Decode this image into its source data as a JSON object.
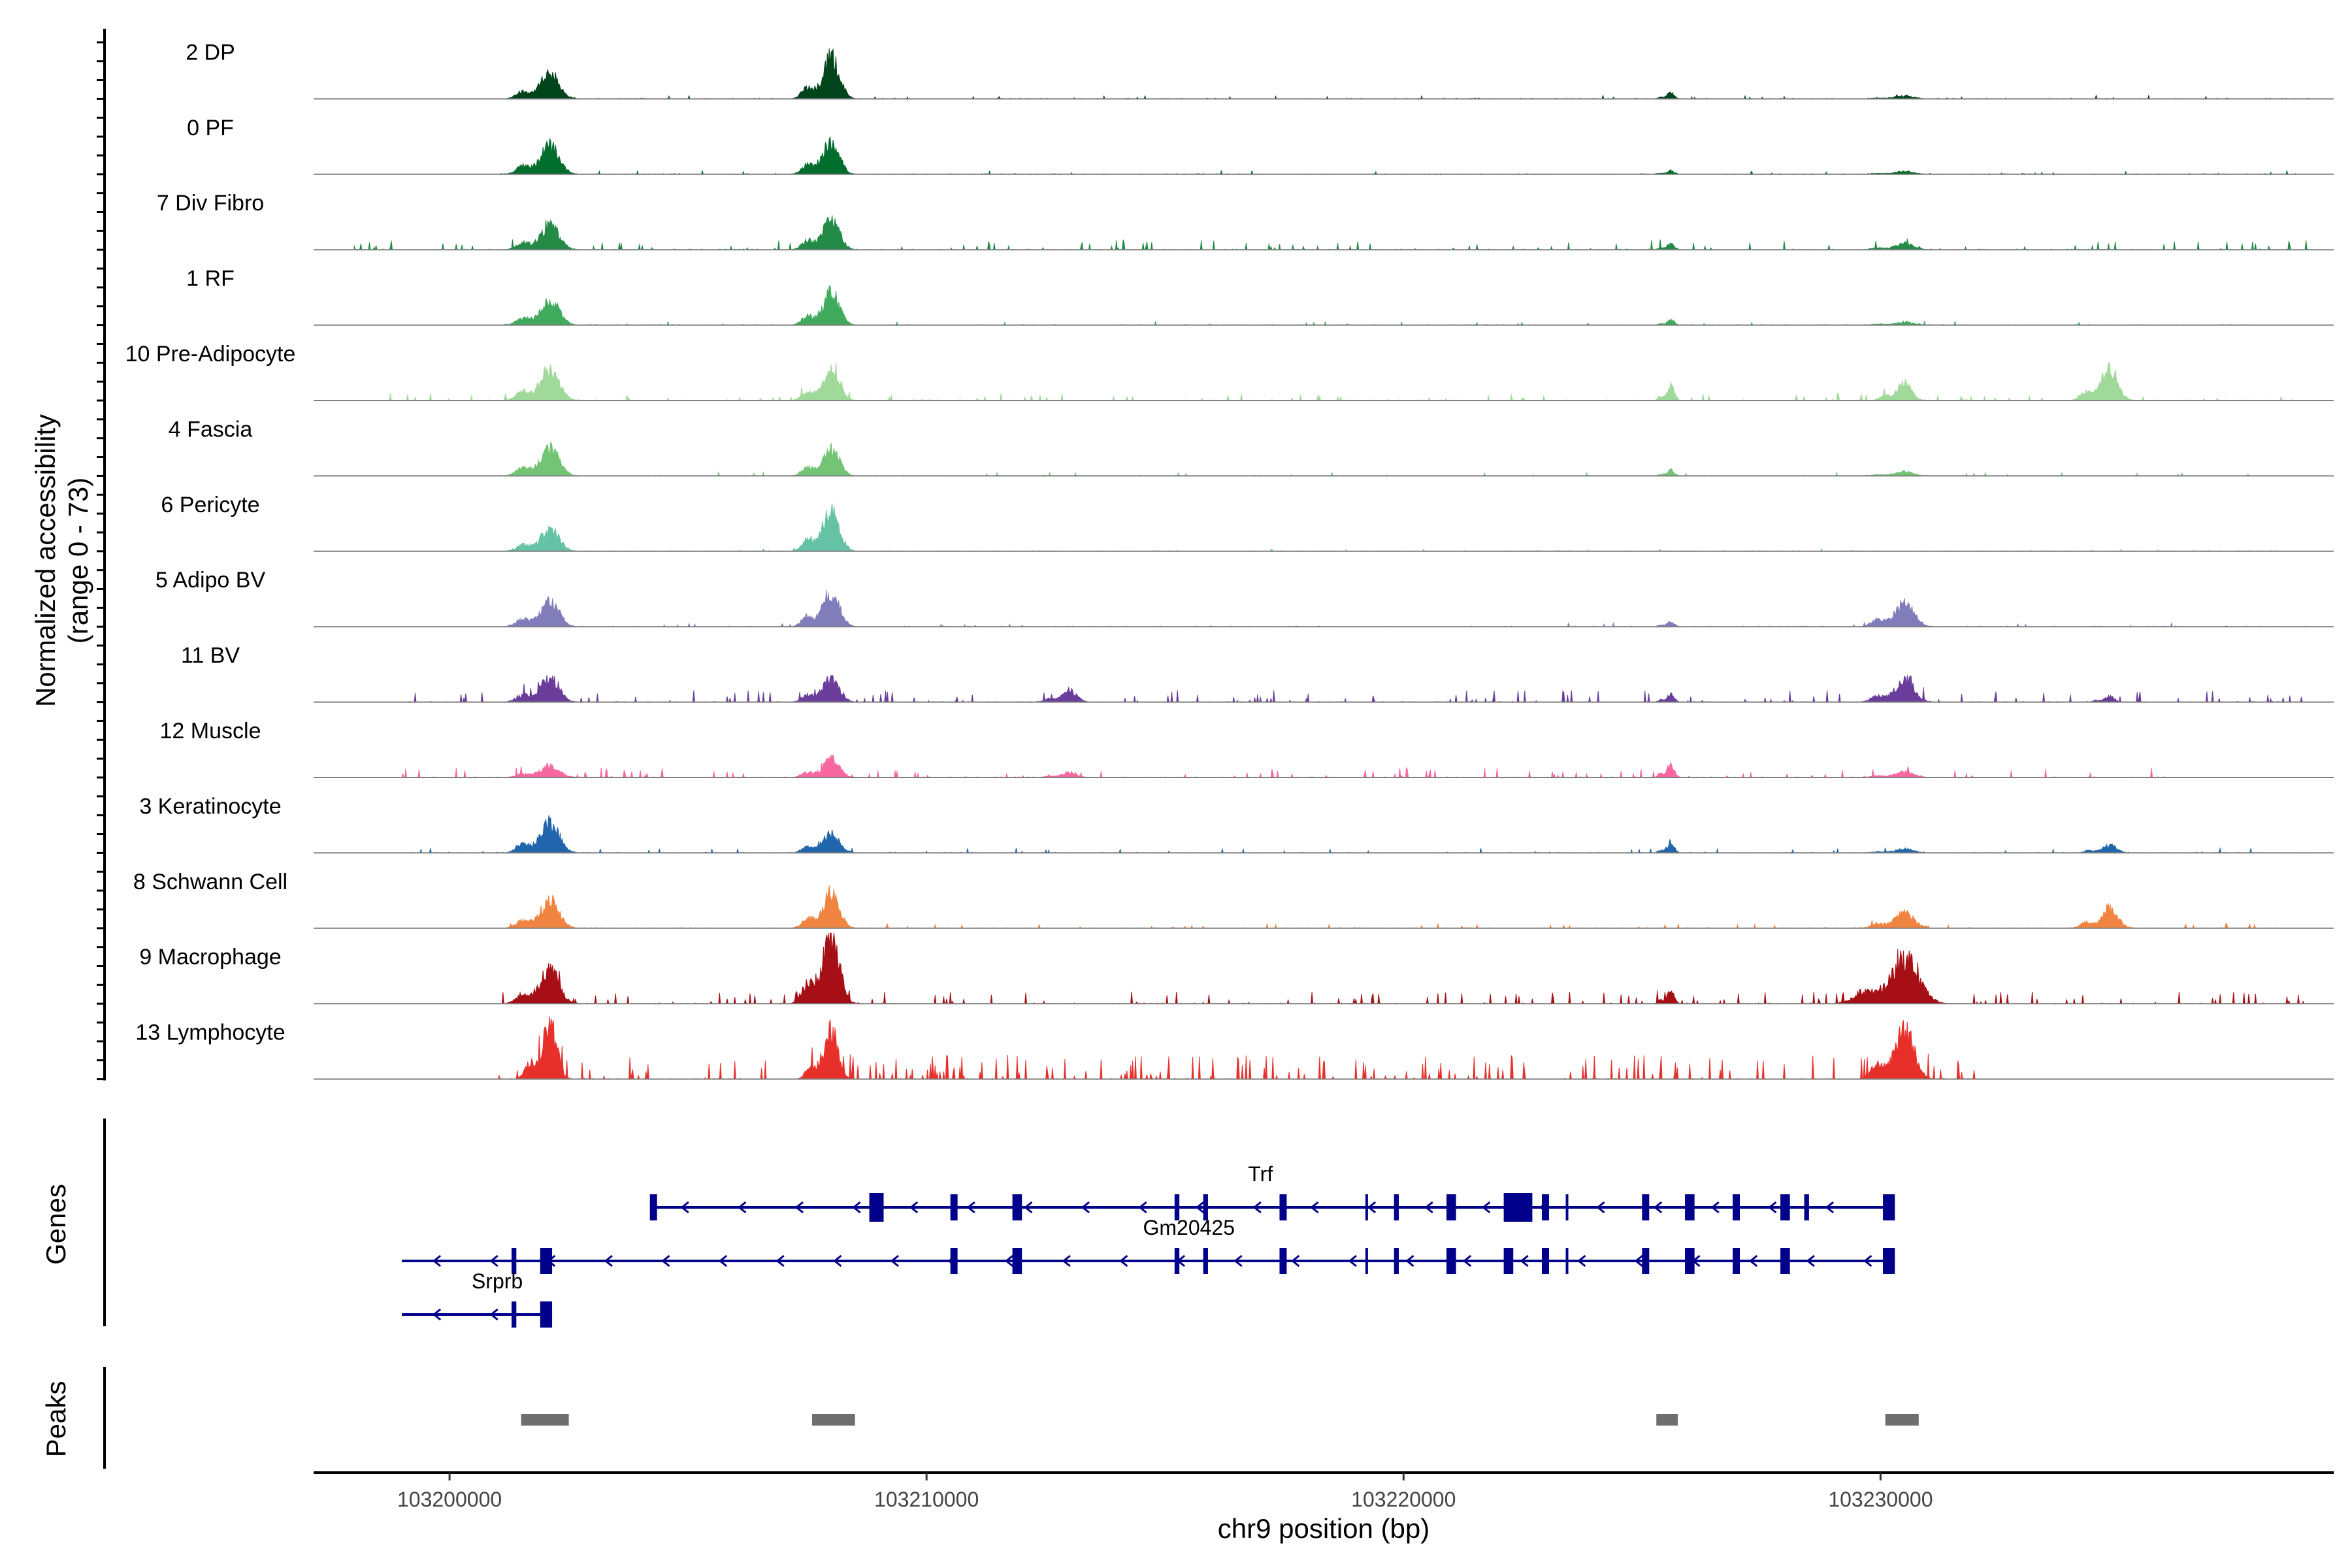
{
  "chart_data": {
    "type": "area",
    "title": "",
    "chromosome": "chr9",
    "xlabel": "chr9 position (bp)",
    "ylabel": "Normalized accessibility",
    "ylabel_range": "(range 0 - 73)",
    "xlim": [
      103197150,
      103239500
    ],
    "ylim": [
      0,
      73
    ],
    "x_ticks": [
      {
        "value": 103200000,
        "label": "103200000"
      },
      {
        "value": 103210000,
        "label": "103210000"
      },
      {
        "value": 103220000,
        "label": "103220000"
      },
      {
        "value": 103230000,
        "label": "103230000"
      }
    ],
    "peak_centers": [
      103202100,
      103208000,
      103213000,
      103225600,
      103230500,
      103234800
    ],
    "tracks": [
      {
        "name": "2 DP",
        "color": "#00441b",
        "peaks": [
          [
            103202100,
            26,
            400
          ],
          [
            103208000,
            42,
            350
          ],
          [
            103225600,
            6,
            150
          ],
          [
            103230500,
            3,
            400
          ]
        ],
        "noise": 1.5,
        "spread": [
          103201000,
          103239000
        ]
      },
      {
        "name": "0 PF",
        "color": "#006d2c",
        "peaks": [
          [
            103202100,
            30,
            400
          ],
          [
            103208000,
            33,
            350
          ],
          [
            103225600,
            4,
            150
          ],
          [
            103230500,
            3,
            400
          ]
        ],
        "noise": 1.5,
        "spread": [
          103201000,
          103239000
        ]
      },
      {
        "name": "7 Div Fibro",
        "color": "#238b45",
        "peaks": [
          [
            103202100,
            24,
            400
          ],
          [
            103208000,
            32,
            350
          ],
          [
            103225600,
            6,
            150
          ],
          [
            103230500,
            6,
            400
          ]
        ],
        "noise": 4,
        "spread": [
          103198000,
          103239000
        ]
      },
      {
        "name": "1 RF",
        "color": "#41ab5d",
        "peaks": [
          [
            103202100,
            25,
            400
          ],
          [
            103208000,
            32,
            350
          ],
          [
            103225600,
            5,
            150
          ],
          [
            103230500,
            3,
            400
          ]
        ],
        "noise": 1.5,
        "spread": [
          103201000,
          103239000
        ]
      },
      {
        "name": "10 Pre-Adipocyte",
        "color": "#a1d99b",
        "peaks": [
          [
            103202100,
            32,
            400
          ],
          [
            103208000,
            30,
            350
          ],
          [
            103225600,
            15,
            150
          ],
          [
            103230500,
            18,
            300
          ],
          [
            103234800,
            32,
            350
          ]
        ],
        "noise": 3,
        "spread": [
          103198000,
          103239000
        ]
      },
      {
        "name": "4 Fascia",
        "color": "#74c476",
        "peaks": [
          [
            103202100,
            28,
            400
          ],
          [
            103208000,
            28,
            350
          ],
          [
            103225600,
            6,
            150
          ],
          [
            103230500,
            4,
            400
          ]
        ],
        "noise": 1.5,
        "spread": [
          103201000,
          103239000
        ]
      },
      {
        "name": "6 Pericyte",
        "color": "#66c2a4",
        "peaks": [
          [
            103202100,
            22,
            400
          ],
          [
            103208000,
            42,
            350
          ]
        ],
        "noise": 1,
        "spread": [
          103201000,
          103239000
        ]
      },
      {
        "name": "5 Adipo BV",
        "color": "#807dba",
        "peaks": [
          [
            103202100,
            26,
            400
          ],
          [
            103208000,
            36,
            350
          ],
          [
            103225600,
            5,
            150
          ],
          [
            103230500,
            24,
            400
          ]
        ],
        "noise": 1.5,
        "spread": [
          103201000,
          103239000
        ]
      },
      {
        "name": "11 BV",
        "color": "#6a3d9a",
        "peaks": [
          [
            103202100,
            24,
            400
          ],
          [
            103208000,
            24,
            350
          ],
          [
            103213000,
            12,
            300
          ],
          [
            103225600,
            8,
            150
          ],
          [
            103230500,
            22,
            400
          ],
          [
            103234800,
            6,
            200
          ]
        ],
        "noise": 5,
        "spread": [
          103199000,
          103239000
        ]
      },
      {
        "name": "12 Muscle",
        "color": "#f768a1",
        "peaks": [
          [
            103202100,
            12,
            400
          ],
          [
            103208000,
            18,
            350
          ],
          [
            103213000,
            5,
            300
          ],
          [
            103225600,
            14,
            150
          ],
          [
            103230500,
            6,
            400
          ]
        ],
        "noise": 4,
        "spread": [
          103199000,
          103236000
        ]
      },
      {
        "name": "3 Keratinocyte",
        "color": "#2166ac",
        "peaks": [
          [
            103202100,
            30,
            400
          ],
          [
            103208000,
            20,
            350
          ],
          [
            103225600,
            10,
            150
          ],
          [
            103230500,
            4,
            400
          ],
          [
            103234800,
            8,
            300
          ]
        ],
        "noise": 2,
        "spread": [
          103199000,
          103239000
        ]
      },
      {
        "name": "8 Schwann Cell",
        "color": "#f08440",
        "peaks": [
          [
            103202100,
            28,
            400
          ],
          [
            103208000,
            35,
            350
          ],
          [
            103230500,
            16,
            400
          ],
          [
            103234800,
            20,
            350
          ]
        ],
        "noise": 2,
        "spread": [
          103201000,
          103239000
        ]
      },
      {
        "name": "9 Macrophage",
        "color": "#a50f15",
        "peaks": [
          [
            103202100,
            35,
            400
          ],
          [
            103208000,
            73,
            350
          ],
          [
            103225600,
            12,
            150
          ],
          [
            103230500,
            45,
            600
          ]
        ],
        "noise": 5,
        "spread": [
          103201000,
          103239000
        ]
      },
      {
        "name": "13 Lymphocyte",
        "color": "#e8302b",
        "peaks": [
          [
            103202100,
            55,
            300
          ],
          [
            103208000,
            48,
            300
          ],
          [
            103230500,
            52,
            400
          ]
        ],
        "noise": 10,
        "spread": [
          103201000,
          103232000
        ]
      }
    ],
    "genes": [
      {
        "name": "Trf",
        "start": 103204200,
        "end": 103230300,
        "strand": "-",
        "exons": [
          [
            103204200,
            103204350
          ],
          [
            103208800,
            103209100
          ],
          [
            103210500,
            103210650
          ],
          [
            103211800,
            103212000
          ],
          [
            103215200,
            103215300
          ],
          [
            103215800,
            103215900
          ],
          [
            103217400,
            103217550
          ],
          [
            103219200,
            103219250
          ],
          [
            103219800,
            103219900
          ],
          [
            103220900,
            103221100
          ],
          [
            103222100,
            103222700
          ],
          [
            103222900,
            103223050
          ],
          [
            103223400,
            103223450
          ],
          [
            103225000,
            103225150
          ],
          [
            103225900,
            103226100
          ],
          [
            103226900,
            103227050
          ],
          [
            103227900,
            103228100
          ],
          [
            103228400,
            103228500
          ],
          [
            103230050,
            103230300
          ]
        ]
      },
      {
        "name": "Gm20425",
        "start": 103199000,
        "end": 103230300,
        "strand": "-",
        "exons": [
          [
            103201300,
            103201400
          ],
          [
            103201900,
            103202150
          ],
          [
            103210500,
            103210650
          ],
          [
            103211800,
            103212000
          ],
          [
            103215200,
            103215300
          ],
          [
            103215800,
            103215900
          ],
          [
            103217400,
            103217550
          ],
          [
            103219200,
            103219250
          ],
          [
            103219800,
            103219900
          ],
          [
            103220900,
            103221100
          ],
          [
            103222100,
            103222300
          ],
          [
            103222900,
            103223050
          ],
          [
            103223400,
            103223450
          ],
          [
            103225000,
            103225150
          ],
          [
            103225900,
            103226100
          ],
          [
            103226900,
            103227050
          ],
          [
            103227900,
            103228100
          ],
          [
            103230050,
            103230300
          ]
        ]
      },
      {
        "name": "Srprb",
        "start": 103199000,
        "end": 103202150,
        "strand": "-",
        "exons": [
          [
            103201300,
            103201400
          ],
          [
            103201900,
            103202150
          ]
        ]
      }
    ],
    "genes_label": "Genes",
    "peaks_label": "Peaks",
    "peak_regions": [
      [
        103201500,
        103202500
      ],
      [
        103207600,
        103208500
      ],
      [
        103225300,
        103225750
      ],
      [
        103230100,
        103230800
      ]
    ]
  }
}
